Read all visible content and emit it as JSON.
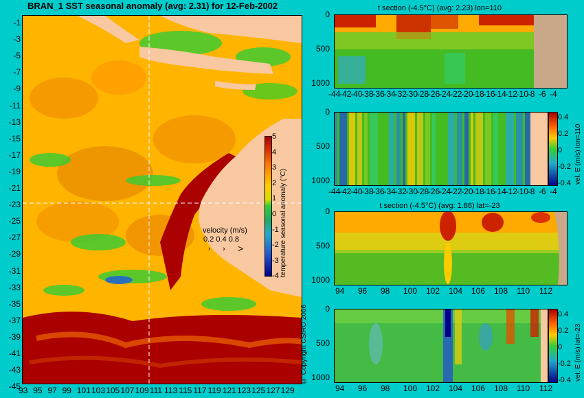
{
  "map": {
    "title": "BRAN_1 SST seasonal anomaly (avg: 2.31) for 12-Feb-2002",
    "lat_labels": [
      "-1",
      "-3",
      "-5",
      "-7",
      "-9",
      "-11",
      "-13",
      "-15",
      "-17",
      "-19",
      "-21",
      "-23",
      "-25",
      "-27",
      "-29",
      "-31",
      "-33",
      "-35",
      "-37",
      "-39",
      "-41",
      "-43",
      "-45"
    ],
    "lon_labels": [
      "93",
      "95",
      "97",
      "99",
      "101",
      "103",
      "105",
      "107",
      "109",
      "111",
      "113",
      "115",
      "117",
      "119",
      "121",
      "123",
      "125",
      "127",
      "129"
    ],
    "colorbar": {
      "label": "temperature seasonal anomaly (°C)",
      "ticks": [
        "5",
        "4",
        "3",
        "2",
        "1",
        "0",
        "-1",
        "-2",
        "-3",
        "-4"
      ]
    },
    "velocity_key": {
      "title": "velocity (m/s)",
      "values": "0.2 0.4 0.8"
    },
    "copyright": "© Copyright CSIRO 2006",
    "colors": {
      "land": "#f8c8a0",
      "warm": "#aa0000",
      "ocean": "#ffcc00",
      "cool": "#33cc33"
    }
  },
  "panels": [
    {
      "title": "t section (-4.5°C) (avg: 2.23) lon=110",
      "y_ticks": [
        "0",
        "500",
        "1000"
      ],
      "x_ticks": [
        "-44",
        "-42",
        "-40",
        "-38",
        "-36",
        "-34",
        "-32",
        "-30",
        "-28",
        "-26",
        "-24",
        "-22",
        "-20",
        "-18",
        "-16",
        "-14",
        "-12",
        "-10",
        "-8",
        "-6",
        "-4"
      ]
    },
    {
      "title": "",
      "y_ticks": [
        "0",
        "500",
        "1000"
      ],
      "x_ticks": [
        "-44",
        "-42",
        "-40",
        "-38",
        "-36",
        "-34",
        "-32",
        "-30",
        "-28",
        "-26",
        "-24",
        "-22",
        "-20",
        "-18",
        "-16",
        "-14",
        "-12",
        "-10",
        "-8",
        "-6",
        "-4"
      ],
      "colorbar": {
        "label": "vel. E (m/s) lon=110",
        "ticks": [
          "0.4",
          "0.2",
          "0",
          "-0.2",
          "-0.4"
        ]
      }
    },
    {
      "title": "t section (-4.5°C) (avg: 1.86) lat=-23",
      "y_ticks": [
        "0",
        "500",
        "1000"
      ],
      "x_ticks": [
        "94",
        "96",
        "98",
        "100",
        "102",
        "104",
        "106",
        "108",
        "110",
        "112"
      ]
    },
    {
      "title": "",
      "y_ticks": [
        "0",
        "500",
        "1000"
      ],
      "x_ticks": [
        "94",
        "96",
        "98",
        "100",
        "102",
        "104",
        "106",
        "108",
        "110",
        "112"
      ],
      "colorbar": {
        "label": "vel. E (m/s) lat=-23",
        "ticks": [
          "0.4",
          "0.2",
          "0",
          "-0.2",
          "-0.4"
        ]
      }
    }
  ]
}
